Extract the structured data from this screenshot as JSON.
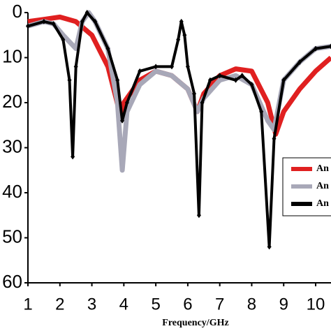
{
  "chart_data": {
    "type": "line",
    "x_label": "Frequency/GHz",
    "xlim": [
      1,
      10.48
    ],
    "xticks": [
      1,
      2,
      3,
      4,
      5,
      6,
      7,
      8,
      9,
      10
    ],
    "ylim": [
      0,
      60
    ],
    "yticks": [
      0,
      10,
      20,
      30,
      40,
      50,
      60
    ],
    "y_inverted": true,
    "legend": "right",
    "series": [
      {
        "name": "An",
        "color": "#e02020",
        "width": 7,
        "markers": false,
        "x": [
          1,
          1.5,
          2,
          2.5,
          3,
          3.5,
          3.9,
          4,
          4.5,
          5,
          5.5,
          6,
          6.3,
          6.5,
          7,
          7.5,
          8,
          8.5,
          8.75,
          9,
          9.5,
          10,
          10.48
        ],
        "values": [
          2,
          1.5,
          1,
          2,
          5,
          12,
          23,
          20,
          15,
          13,
          14,
          17,
          22,
          18,
          14,
          12.5,
          13,
          20,
          27,
          22,
          17,
          13,
          10
        ]
      },
      {
        "name": "An",
        "color": "#a8a8b8",
        "width": 7,
        "markers": false,
        "x": [
          1,
          1.5,
          1.8,
          2.1,
          2.5,
          2.7,
          2.9,
          3.1,
          3.5,
          3.8,
          3.95,
          4.1,
          4.5,
          5,
          5.5,
          6,
          6.3,
          6.5,
          7,
          7.5,
          8,
          8.5,
          8.7,
          9,
          9.5,
          10,
          10.48
        ],
        "values": [
          3,
          2,
          2.5,
          5,
          8,
          2,
          0,
          2,
          8,
          20,
          35,
          22,
          16,
          13,
          14,
          17,
          22,
          19,
          15,
          14,
          16,
          24,
          26,
          15,
          11,
          8,
          7.5
        ]
      },
      {
        "name": "An",
        "color": "#000000",
        "width": 4,
        "markers": true,
        "x": [
          1,
          1.5,
          1.8,
          2.1,
          2.3,
          2.4,
          2.5,
          2.7,
          2.85,
          3.1,
          3.5,
          3.8,
          3.95,
          4.1,
          4.5,
          5,
          5.5,
          5.7,
          5.8,
          5.9,
          6,
          6.2,
          6.35,
          6.45,
          6.7,
          7,
          7.5,
          7.7,
          8,
          8.3,
          8.55,
          8.7,
          9,
          9.5,
          10,
          10.48
        ],
        "values": [
          3,
          2,
          2.5,
          6,
          15,
          32,
          12,
          2,
          0,
          2,
          8,
          15,
          24,
          20,
          13,
          12,
          12,
          6,
          2,
          5,
          12,
          18,
          45,
          20,
          15,
          14,
          15,
          14,
          16,
          22,
          52,
          28,
          15,
          11,
          8,
          7.5
        ]
      }
    ]
  }
}
